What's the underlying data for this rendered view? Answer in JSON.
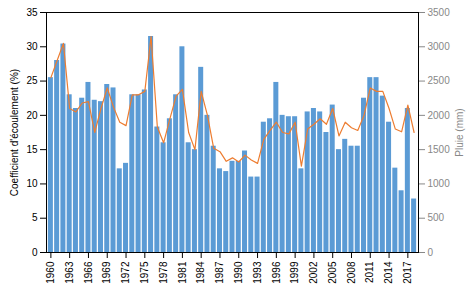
{
  "chart_data": {
    "type": "bar",
    "x": [
      1960,
      1961,
      1962,
      1963,
      1964,
      1965,
      1966,
      1967,
      1968,
      1969,
      1970,
      1971,
      1972,
      1973,
      1974,
      1975,
      1976,
      1977,
      1978,
      1979,
      1980,
      1981,
      1982,
      1983,
      1984,
      1985,
      1986,
      1987,
      1988,
      1989,
      1990,
      1991,
      1992,
      1993,
      1994,
      1995,
      1996,
      1997,
      1998,
      1999,
      2000,
      2001,
      2002,
      2003,
      2004,
      2005,
      2006,
      2007,
      2008,
      2009,
      2010,
      2011,
      2012,
      2013,
      2014,
      2015,
      2016,
      2017,
      2018
    ],
    "series": [
      {
        "type": "bar",
        "color": "#5B9BD5",
        "values": [
          25.5,
          28.0,
          30.4,
          23.0,
          21.0,
          22.5,
          24.8,
          22.2,
          22.0,
          24.5,
          24.0,
          12.2,
          13.0,
          23.0,
          23.0,
          23.7,
          31.5,
          18.3,
          16.0,
          19.5,
          23.0,
          30.0,
          16.0,
          15.0,
          27.0,
          20.0,
          15.5,
          12.2,
          11.8,
          13.3,
          13.3,
          14.8,
          11.0,
          11.0,
          19.0,
          19.5,
          24.8,
          20.0,
          19.8,
          19.8,
          12.2,
          20.5,
          21.0,
          20.5,
          17.5,
          21.5,
          15.0,
          16.5,
          15.5,
          15.5,
          22.5,
          25.5,
          25.5,
          22.8,
          19.0,
          12.3,
          9.0,
          21.0,
          7.8
        ]
      },
      {
        "type": "line",
        "color": "#ED7D31",
        "axis": "y2",
        "values": [
          2550,
          2800,
          3050,
          2100,
          2050,
          2180,
          2200,
          1750,
          2100,
          2400,
          2120,
          1900,
          1850,
          2300,
          2300,
          2350,
          3150,
          1830,
          1600,
          1950,
          2280,
          2380,
          1750,
          1500,
          2350,
          2000,
          1520,
          1470,
          1330,
          1380,
          1320,
          1420,
          1350,
          1300,
          1650,
          1780,
          1900,
          1750,
          1730,
          1900,
          1260,
          1800,
          1870,
          1950,
          1870,
          2100,
          1700,
          1900,
          1820,
          1780,
          2000,
          2400,
          2350,
          2350,
          2100,
          1800,
          1760,
          2150,
          1750
        ]
      }
    ],
    "ylabel": "Coefficient d'écoulement (%)",
    "y2label": "Pluie (mm)",
    "xlim": [
      1959.3,
      2018.7
    ],
    "xticks": [
      1960,
      1963,
      1966,
      1969,
      1972,
      1975,
      1978,
      1981,
      1984,
      1987,
      1990,
      1993,
      1996,
      1999,
      2002,
      2005,
      2008,
      2011,
      2014,
      2017
    ],
    "ylim": [
      0,
      35
    ],
    "yticks": [
      0,
      5,
      10,
      15,
      20,
      25,
      30,
      35
    ],
    "y2lim": [
      0,
      3500
    ],
    "y2ticks": [
      0,
      500,
      1000,
      1500,
      2000,
      2500,
      3000,
      3500
    ],
    "grid": false
  }
}
